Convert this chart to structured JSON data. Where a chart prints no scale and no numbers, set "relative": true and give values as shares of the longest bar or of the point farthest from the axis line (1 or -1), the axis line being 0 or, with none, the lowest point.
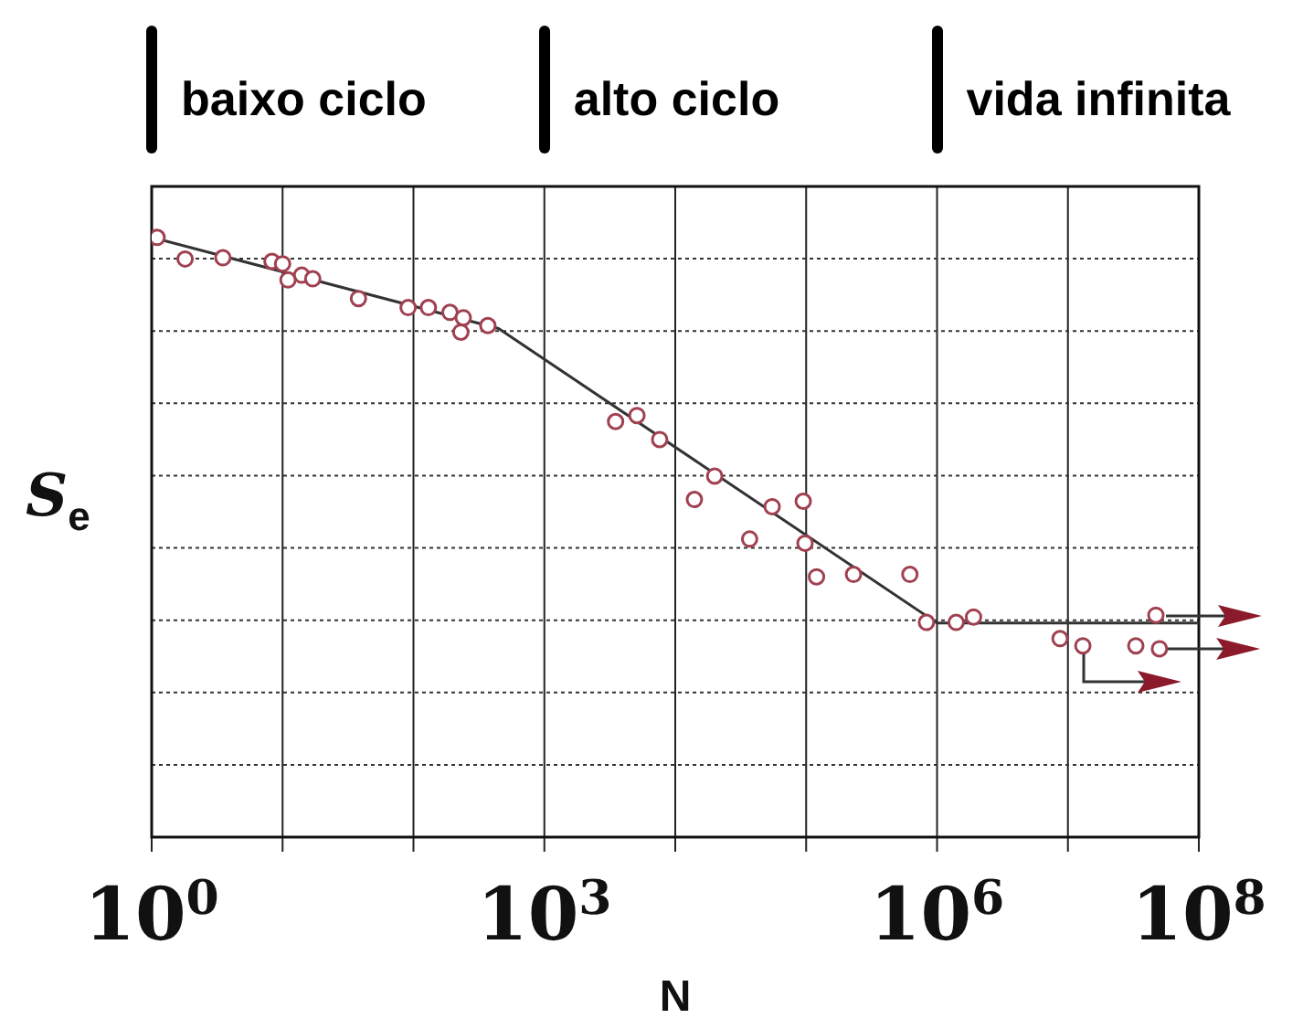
{
  "chart_data": {
    "type": "scatter",
    "relative": true,
    "log": "x",
    "xlabel": "N",
    "ylabel": "S$_{e}$",
    "grid": true,
    "legend": false,
    "marker": "circle",
    "xlim": [
      1,
      100000000
    ],
    "xticks": [
      {
        "value": 1,
        "label": "10$^{0}$"
      },
      {
        "value": 10,
        "label": null
      },
      {
        "value": 100,
        "label": null
      },
      {
        "value": 1000,
        "label": "10$^{3}$"
      },
      {
        "value": 10000,
        "label": null
      },
      {
        "value": 100000,
        "label": null
      },
      {
        "value": 1000000,
        "label": "10$^{6}$"
      },
      {
        "value": 10000000,
        "label": null
      },
      {
        "value": 100000000,
        "label": "10$^{8}$"
      }
    ],
    "annotations": [
      "baixo ciclo",
      "alto ciclo",
      "vida infinita"
    ],
    "series": [
      {
        "color": "#a04050",
        "x": [
          1.1,
          1.8,
          3.5,
          8.3,
          10,
          11,
          14,
          17,
          38,
          91,
          130,
          190,
          240,
          230,
          370,
          3500,
          5100,
          7600,
          20000,
          14000,
          55000,
          95000,
          37000,
          98000,
          120000,
          230000,
          620000,
          830000,
          1400000,
          1900000,
          8700000,
          13000000,
          33000000,
          50000000,
          47000000
        ],
        "values": [
          1.0,
          0.964,
          0.966,
          0.96,
          0.956,
          0.929,
          0.937,
          0.931,
          0.898,
          0.883,
          0.883,
          0.875,
          0.866,
          0.842,
          0.853,
          0.693,
          0.703,
          0.663,
          0.602,
          0.563,
          0.551,
          0.56,
          0.497,
          0.49,
          0.434,
          0.438,
          0.438,
          0.358,
          0.358,
          0.367,
          0.331,
          0.319,
          0.319,
          0.314,
          0.37
        ]
      },
      {
        "type": "line",
        "color": "#333333",
        "marker": "none",
        "x": [
          1,
          447,
          1000000,
          100000000
        ],
        "values": [
          1.0,
          0.848,
          0.357,
          0.357
        ]
      }
    ]
  }
}
